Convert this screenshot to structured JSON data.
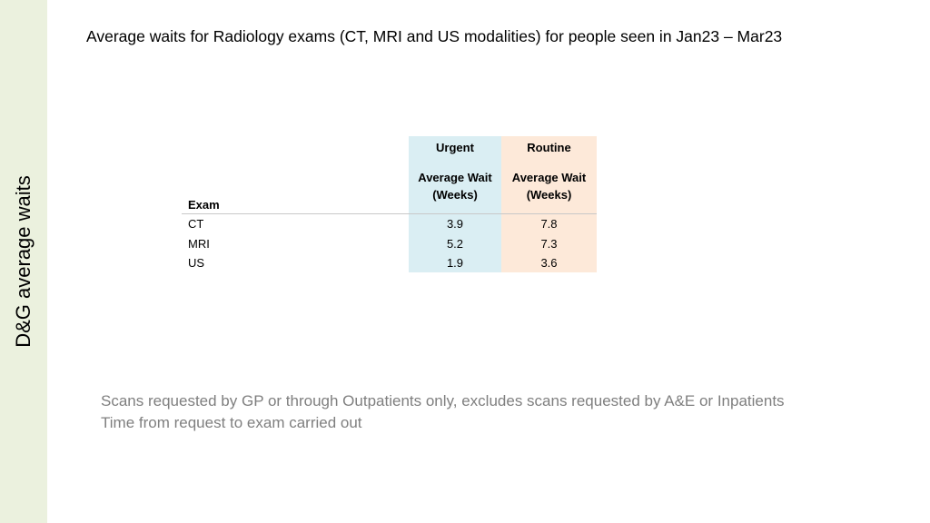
{
  "sidebar": {
    "title": "D&G average waits"
  },
  "title": "Average waits for Radiology exams (CT, MRI and US modalities) for people seen in Jan23 – Mar23",
  "table": {
    "row_header": "Exam",
    "columns": [
      {
        "group": "Urgent",
        "label": "Average Wait (Weeks)",
        "label_line1": "Average Wait",
        "label_line2": "(Weeks)"
      },
      {
        "group": "Routine",
        "label": "Average Wait (Weeks)",
        "label_line1": "Average Wait",
        "label_line2": "(Weeks)"
      }
    ],
    "rows": [
      {
        "exam": "CT",
        "urgent": "3.9",
        "routine": "7.8"
      },
      {
        "exam": "MRI",
        "urgent": "5.2",
        "routine": "7.3"
      },
      {
        "exam": "US",
        "urgent": "1.9",
        "routine": "3.6"
      }
    ]
  },
  "notes": [
    "Scans requested by GP or through Outpatients only, excludes scans requested by A&E or Inpatients",
    "Time from request to exam carried out"
  ],
  "colors": {
    "sidebar_bg": "#ebf1de",
    "urgent_bg": "#daeef3",
    "routine_bg": "#fde9d9",
    "note_text": "#7f7f7f"
  }
}
